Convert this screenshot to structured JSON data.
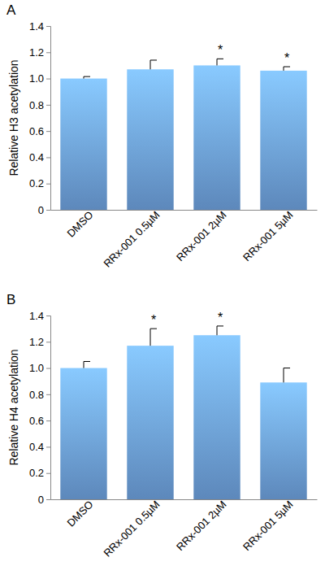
{
  "chart_data": [
    {
      "type": "bar",
      "title": "A",
      "y_label": "Relative H3 acetylation",
      "categories": [
        "DMSO",
        "RRx-001 0.5µM",
        "RRx-001 2µM",
        "RRx-001 5µM"
      ],
      "values": [
        1.0,
        1.07,
        1.1,
        1.06
      ],
      "errors": [
        0.015,
        0.07,
        0.05,
        0.03
      ],
      "color": "#6fa3e0",
      "ylim": [
        0,
        1.4
      ],
      "yticks": [
        0,
        0.2,
        0.4,
        0.6,
        0.8,
        {
          "value": 1,
          "label": "1.0"
        },
        1.2,
        1.4
      ],
      "grid": false,
      "annotations": [
        {
          "x": "RRx-001 2µM",
          "text": "*"
        },
        {
          "x": "RRx-001 5µM",
          "text": "*"
        }
      ]
    },
    {
      "type": "bar",
      "title": "B",
      "y_label": "Relative H4 acetylation",
      "categories": [
        "DMSO",
        "RRx-001 0.5µM",
        "RRx-001 2µM",
        "RRx-001 5µM"
      ],
      "values": [
        1.0,
        1.17,
        1.25,
        0.89
      ],
      "errors": [
        0.05,
        0.13,
        0.07,
        0.11
      ],
      "color": "#6fa3e0",
      "ylim": [
        0,
        1.4
      ],
      "yticks": [
        0,
        0.2,
        0.4,
        0.6,
        0.8,
        {
          "value": 1,
          "label": "1.0"
        },
        1.2,
        1.4
      ],
      "grid": false,
      "annotations": [
        {
          "x": "RRx-001 0.5µM",
          "text": "*"
        },
        {
          "x": "RRx-001 2µM",
          "text": "*"
        }
      ]
    }
  ]
}
